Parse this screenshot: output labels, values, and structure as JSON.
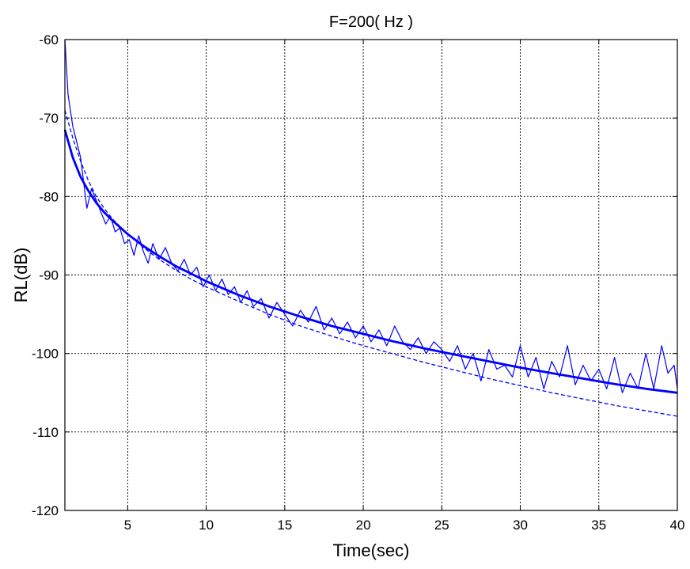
{
  "chart_data": {
    "type": "line",
    "title": "F=200( Hz )",
    "xlabel": "Time(sec)",
    "ylabel": "RL(dB)",
    "xlim": [
      1,
      40
    ],
    "ylim": [
      -120,
      -60
    ],
    "xticks": [
      5,
      10,
      15,
      20,
      25,
      30,
      35,
      40
    ],
    "yticks": [
      -120,
      -110,
      -100,
      -90,
      -80,
      -70,
      -60
    ],
    "grid": true,
    "grid_style": "dotted",
    "line_color": "#0000ff",
    "series": [
      {
        "style": "thin-solid-noisy",
        "x": [
          1.0,
          1.2,
          1.5,
          2.0,
          2.4,
          2.7,
          3.0,
          3.3,
          3.6,
          3.9,
          4.2,
          4.5,
          4.8,
          5.1,
          5.4,
          5.7,
          6.0,
          6.3,
          6.6,
          7.0,
          7.4,
          7.8,
          8.2,
          8.6,
          9.0,
          9.4,
          9.8,
          10.2,
          10.6,
          11.0,
          11.4,
          11.8,
          12.2,
          12.6,
          13.0,
          13.5,
          14.0,
          14.5,
          15.0,
          15.5,
          16.0,
          16.5,
          17.0,
          17.5,
          18.0,
          18.5,
          19.0,
          19.5,
          20.0,
          20.5,
          21.0,
          21.5,
          22.0,
          22.5,
          23.0,
          23.5,
          24.0,
          24.5,
          25.0,
          25.5,
          26.0,
          26.5,
          27.0,
          27.5,
          28.0,
          28.5,
          29.0,
          29.5,
          30.0,
          30.5,
          31.0,
          31.5,
          32.0,
          32.5,
          33.0,
          33.5,
          34.0,
          34.5,
          35.0,
          35.5,
          36.0,
          36.5,
          37.0,
          37.5,
          38.0,
          38.5,
          39.0,
          39.4,
          39.8,
          40.0
        ],
        "y": [
          -60.0,
          -67.0,
          -71.0,
          -75.0,
          -81.5,
          -79.0,
          -80.5,
          -82.0,
          -83.5,
          -82.5,
          -84.5,
          -84.0,
          -86.0,
          -85.5,
          -87.5,
          -85.0,
          -87.0,
          -88.5,
          -86.0,
          -88.0,
          -86.5,
          -88.5,
          -89.5,
          -88.0,
          -90.0,
          -89.0,
          -91.5,
          -90.0,
          -92.0,
          -90.5,
          -92.5,
          -91.5,
          -93.5,
          -92.0,
          -94.0,
          -93.0,
          -95.5,
          -93.5,
          -95.0,
          -96.5,
          -94.5,
          -96.0,
          -94.0,
          -97.0,
          -95.5,
          -97.5,
          -96.0,
          -98.0,
          -96.5,
          -98.5,
          -97.0,
          -99.0,
          -96.5,
          -98.5,
          -99.5,
          -98.0,
          -100.0,
          -98.5,
          -99.5,
          -101.0,
          -99.0,
          -102.0,
          -100.0,
          -103.5,
          -99.5,
          -102.0,
          -101.5,
          -103.0,
          -99.0,
          -103.0,
          -100.5,
          -104.5,
          -101.0,
          -103.0,
          -99.0,
          -104.0,
          -101.5,
          -103.5,
          -102.0,
          -104.5,
          -100.5,
          -105.0,
          -102.5,
          -104.5,
          -100.0,
          -104.5,
          -99.0,
          -102.5,
          -101.5,
          -104.5
        ]
      },
      {
        "style": "thick-solid",
        "x": [
          1.0,
          1.5,
          2.0,
          2.5,
          3.0,
          3.5,
          4.0,
          5.0,
          6.0,
          7.0,
          8.0,
          9.0,
          10.0,
          12.0,
          14.0,
          16.0,
          18.0,
          20.0,
          22.0,
          24.0,
          26.0,
          28.0,
          30.0,
          32.0,
          34.0,
          36.0,
          38.0,
          40.0
        ],
        "y": [
          -71.5,
          -75.0,
          -77.5,
          -79.3,
          -80.8,
          -82.0,
          -83.0,
          -84.8,
          -86.3,
          -87.6,
          -88.8,
          -89.8,
          -90.8,
          -92.5,
          -94.0,
          -95.3,
          -96.5,
          -97.5,
          -98.5,
          -99.4,
          -100.2,
          -101.0,
          -101.8,
          -102.5,
          -103.2,
          -103.9,
          -104.5,
          -105.0
        ]
      },
      {
        "style": "dashed",
        "x": [
          1.0,
          1.5,
          2.0,
          2.5,
          3.0,
          3.5,
          4.0,
          5.0,
          6.0,
          7.0,
          8.0,
          9.0,
          10.0,
          12.0,
          14.0,
          16.0,
          18.0,
          20.0,
          22.0,
          24.0,
          26.0,
          28.0,
          30.0,
          32.0,
          34.0,
          36.0,
          38.0,
          40.0
        ],
        "y": [
          -69.0,
          -72.5,
          -75.5,
          -78.0,
          -80.0,
          -81.5,
          -82.8,
          -84.8,
          -86.5,
          -88.0,
          -89.3,
          -90.5,
          -91.5,
          -93.3,
          -95.0,
          -96.5,
          -97.8,
          -99.0,
          -100.1,
          -101.2,
          -102.2,
          -103.2,
          -104.1,
          -105.0,
          -105.8,
          -106.6,
          -107.3,
          -108.0
        ]
      }
    ]
  }
}
